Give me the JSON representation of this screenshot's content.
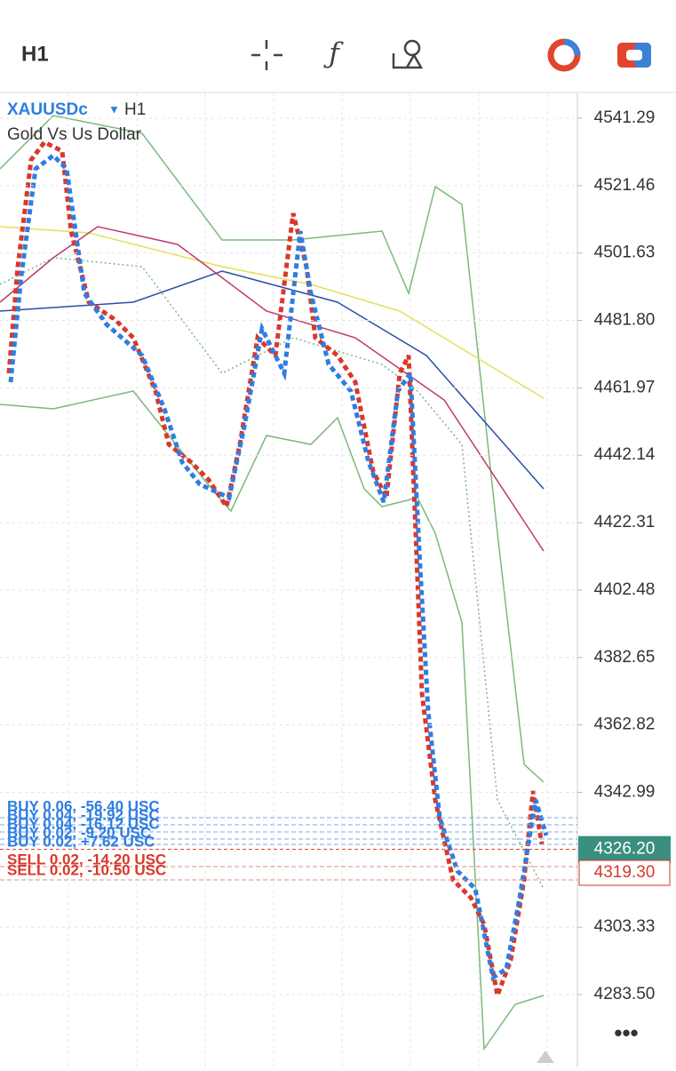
{
  "toolbar": {
    "timeframe": "H1"
  },
  "chart": {
    "symbol": "XAUUSDc",
    "timeframe": "H1",
    "description": "Gold Vs Us Dollar",
    "ylim": [
      4262.32,
      4548.61
    ],
    "yticks": [
      4541.29,
      4521.46,
      4501.63,
      {
        "value": 4481.8,
        "label": "4481.80"
      },
      4461.97,
      4442.14,
      4422.31,
      4402.48,
      4382.65,
      4362.82,
      4342.99,
      4303.33,
      {
        "value": 4283.5,
        "label": "4283.50"
      }
    ],
    "bid": {
      "value": 4326.2,
      "label": "4326.20"
    },
    "ask": {
      "value": 4319.3,
      "label": "4319.30"
    },
    "buy_orders": [
      "BUY 0.06, -56.40 USC",
      "BUY 0.04, -19.92 USC",
      "BUY 0.04, -16.12 USC",
      "BUY 0.02, -9.20 USC",
      "BUY 0.02, +7.62 USC"
    ],
    "sell_orders": [
      "SELL 0.02, -14.20 USC",
      "SELL 0.02, -10.50 USC"
    ]
  }
}
